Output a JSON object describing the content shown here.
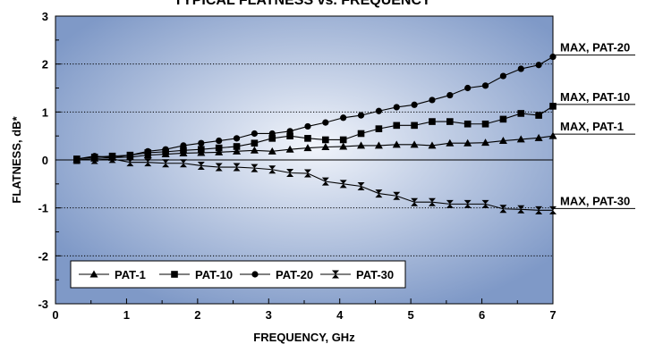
{
  "chart_data": {
    "type": "line",
    "title": "TYPICAL FLATNESS vs. FREQUENCY",
    "xlabel": "FREQUENCY, GHz",
    "ylabel": "FLATNESS, dB*",
    "xlim": [
      0,
      7
    ],
    "ylim": [
      -3,
      3
    ],
    "x_ticks": [
      "0",
      "1",
      "2",
      "3",
      "4",
      "5",
      "6",
      "7"
    ],
    "y_ticks": [
      "3",
      "2",
      "1",
      "0",
      "-1",
      "-2",
      "-3"
    ],
    "grid": "dotted horizontal lines at each y tick",
    "legend_position": "bottom-left",
    "background": "blue radial gradient",
    "x": [
      0.3,
      0.55,
      0.8,
      1.05,
      1.3,
      1.55,
      1.8,
      2.05,
      2.3,
      2.55,
      2.8,
      3.05,
      3.3,
      3.55,
      3.8,
      4.05,
      4.3,
      4.55,
      4.8,
      5.05,
      5.3,
      5.55,
      5.8,
      6.05,
      6.3,
      6.55,
      6.8,
      7.0
    ],
    "series": [
      {
        "name": "PAT-1",
        "marker": "triangle",
        "values": [
          0.0,
          0.03,
          0.05,
          0.06,
          0.1,
          0.12,
          0.14,
          0.15,
          0.16,
          0.18,
          0.2,
          0.18,
          0.22,
          0.25,
          0.27,
          0.28,
          0.3,
          0.3,
          0.32,
          0.32,
          0.3,
          0.35,
          0.35,
          0.36,
          0.4,
          0.43,
          0.46,
          0.5
        ]
      },
      {
        "name": "PAT-10",
        "marker": "square",
        "values": [
          0.02,
          0.06,
          0.08,
          0.1,
          0.15,
          0.17,
          0.2,
          0.22,
          0.25,
          0.28,
          0.35,
          0.45,
          0.5,
          0.45,
          0.42,
          0.42,
          0.55,
          0.65,
          0.72,
          0.72,
          0.8,
          0.8,
          0.75,
          0.75,
          0.85,
          0.97,
          0.93,
          1.12
        ]
      },
      {
        "name": "PAT-20",
        "marker": "circle",
        "values": [
          0.02,
          0.08,
          0.05,
          0.1,
          0.18,
          0.22,
          0.3,
          0.35,
          0.4,
          0.45,
          0.55,
          0.55,
          0.6,
          0.7,
          0.78,
          0.88,
          0.93,
          1.02,
          1.1,
          1.15,
          1.25,
          1.35,
          1.5,
          1.55,
          1.75,
          1.9,
          1.98,
          2.15
        ]
      },
      {
        "name": "PAT-30",
        "marker": "hourglass",
        "values": [
          0.0,
          0.0,
          0.02,
          -0.05,
          -0.05,
          -0.07,
          -0.07,
          -0.12,
          -0.15,
          -0.15,
          -0.17,
          -0.2,
          -0.27,
          -0.28,
          -0.45,
          -0.5,
          -0.55,
          -0.7,
          -0.75,
          -0.88,
          -0.88,
          -0.92,
          -0.92,
          -0.92,
          -1.02,
          -1.03,
          -1.05,
          -1.05
        ]
      }
    ],
    "annotations": [
      {
        "text": "MAX,  PAT-20",
        "series": "PAT-20"
      },
      {
        "text": "MAX,  PAT-10",
        "series": "PAT-10"
      },
      {
        "text": "MAX,   PAT-1",
        "series": "PAT-1"
      },
      {
        "text": "MAX,   PAT-30",
        "series": "PAT-30"
      }
    ],
    "colors": {
      "gradient_center": "#f2f5fb",
      "gradient_edge": "#7f99c7",
      "lines": "#000000",
      "legend_background": "#ffffff"
    }
  }
}
